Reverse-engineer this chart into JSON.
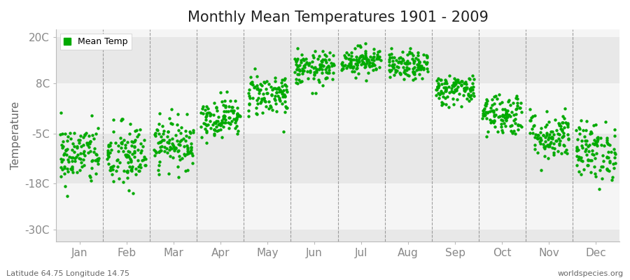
{
  "title": "Monthly Mean Temperatures 1901 - 2009",
  "ylabel": "Temperature",
  "xlabel_labels": [
    "Jan",
    "Feb",
    "Mar",
    "Apr",
    "May",
    "Jun",
    "Jul",
    "Aug",
    "Sep",
    "Oct",
    "Nov",
    "Dec"
  ],
  "ytick_labels": [
    "20C",
    "8C",
    "-5C",
    "-18C",
    "-30C"
  ],
  "ytick_values": [
    20,
    8,
    -5,
    -18,
    -30
  ],
  "ylim": [
    -33,
    22
  ],
  "dot_color": "#00aa00",
  "dot_size": 10,
  "legend_label": "Mean Temp",
  "footer_left": "Latitude 64.75 Longitude 14.75",
  "footer_right": "worldspecies.org",
  "bg_color": "#ffffff",
  "plot_bg_color": "#ffffff",
  "title_fontsize": 15,
  "n_years": 109,
  "monthly_means": [
    -10.5,
    -11.0,
    -7.5,
    -0.8,
    5.2,
    11.8,
    14.0,
    12.5,
    6.5,
    0.2,
    -5.5,
    -9.5
  ],
  "monthly_stds": [
    4.0,
    4.5,
    3.2,
    2.5,
    2.8,
    2.2,
    1.8,
    1.8,
    2.0,
    2.8,
    3.2,
    3.8
  ],
  "band_colors": [
    "#e8e8e8",
    "#f5f5f5"
  ],
  "vline_color": "#888888",
  "tick_color": "#888888",
  "label_fontsize": 11
}
